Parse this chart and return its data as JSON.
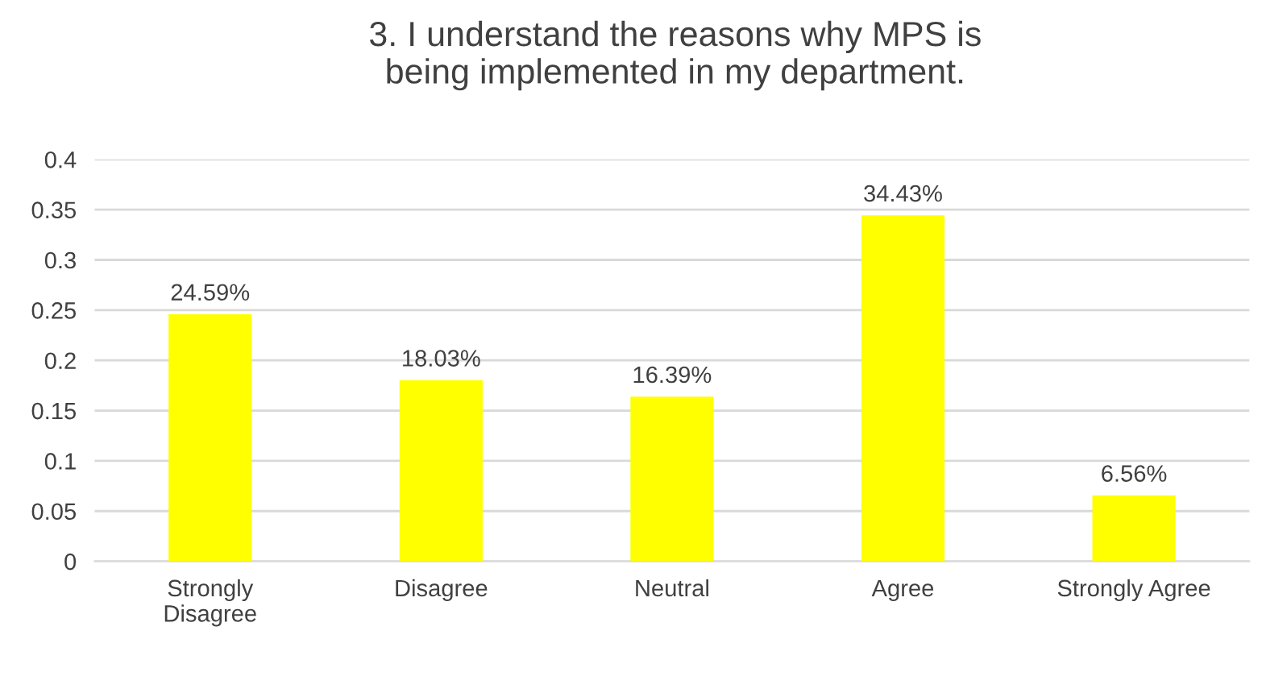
{
  "chart_data": {
    "type": "bar",
    "title": "3. I understand the reasons why MPS is\nbeing implemented in my department.",
    "categories": [
      "Strongly\nDisagree",
      "Disagree",
      "Neutral",
      "Agree",
      "Strongly Agree"
    ],
    "values": [
      0.2459,
      0.1803,
      0.1639,
      0.3443,
      0.0656
    ],
    "value_labels": [
      "24.59%",
      "18.03%",
      "16.39%",
      "34.43%",
      "6.56%"
    ],
    "color": "#ffff00",
    "ylim": [
      0,
      0.4
    ],
    "yticks": [
      0,
      0.05,
      0.1,
      0.15,
      0.2,
      0.25,
      0.3,
      0.35,
      0.4
    ],
    "grid": "y"
  }
}
